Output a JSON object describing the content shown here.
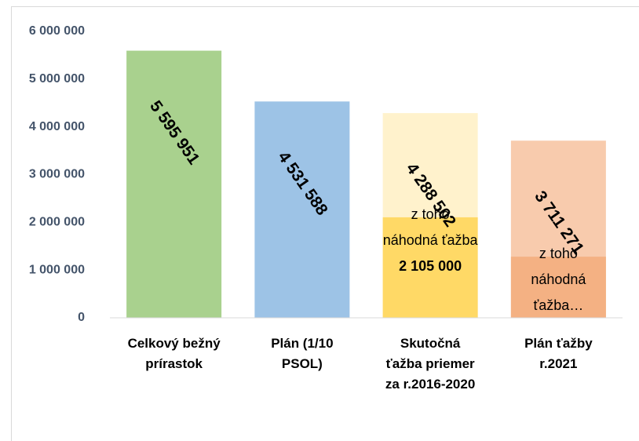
{
  "chart_data": {
    "type": "bar",
    "categories": [
      "Celkový bežný prírastok",
      "Plán (1/10 PSOL)",
      "Skutočná ťažba priemer za r.2016-2020",
      "Plán ťažby r.2021"
    ],
    "values": [
      5595951,
      4531588,
      4288502,
      3711271
    ],
    "value_labels": [
      "5 595 951",
      "4 531 588",
      "4 288 502",
      "3 711 271"
    ],
    "colors": [
      "#a9d18e",
      "#9dc3e6",
      "#fff2cc",
      "#f8cbad"
    ],
    "subset": {
      "values": [
        null,
        null,
        2105000,
        1280000
      ],
      "labels": [
        null,
        null,
        "z toho náhodná ťažba",
        "z toho náhodná ťažba…"
      ],
      "value_labels": [
        null,
        null,
        "2 105 000",
        null
      ],
      "colors": [
        null,
        null,
        "#ffd966",
        "#f4b183"
      ]
    },
    "ylim": [
      0,
      6000000
    ],
    "yticks": [
      {
        "value": 0,
        "label": "0"
      },
      {
        "value": 1000000,
        "label": "1 000 000"
      },
      {
        "value": 2000000,
        "label": "2 000 000"
      },
      {
        "value": 3000000,
        "label": "3 000 000"
      },
      {
        "value": 4000000,
        "label": "4 000 000"
      },
      {
        "value": 5000000,
        "label": "5 000 000"
      },
      {
        "value": 6000000,
        "label": "6 000 000"
      }
    ],
    "grid": false
  }
}
